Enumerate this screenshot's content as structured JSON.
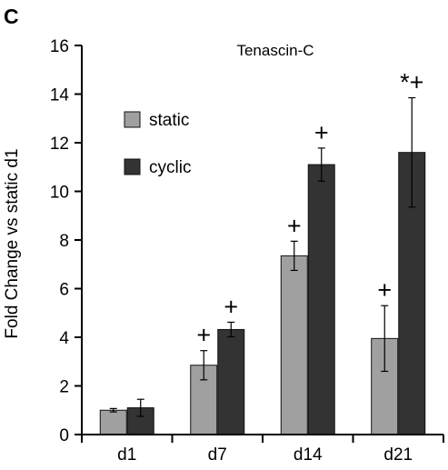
{
  "panel_label": "C",
  "chart_data": {
    "type": "bar",
    "title": "Tenascin-C",
    "xlabel": "",
    "ylabel": "Fold Change vs static d1",
    "ylim": [
      0,
      16
    ],
    "yticks": [
      "0",
      "2",
      "4",
      "6",
      "8",
      "10",
      "12",
      "14",
      "16"
    ],
    "categories": [
      "d1",
      "d7",
      "d14",
      "d21"
    ],
    "grid": false,
    "legend_position": "top-left",
    "series": [
      {
        "name": "static",
        "color": "#a0a0a0",
        "values": [
          1.0,
          2.85,
          7.35,
          3.95
        ],
        "errors": [
          0.07,
          0.6,
          0.6,
          1.35
        ],
        "annotations": [
          "",
          "+",
          "+",
          "+"
        ]
      },
      {
        "name": "cyclic",
        "color": "#333333",
        "values": [
          1.1,
          4.32,
          11.1,
          11.6
        ],
        "errors": [
          0.35,
          0.3,
          0.68,
          2.25
        ],
        "annotations": [
          "",
          "+",
          "+",
          "*+"
        ]
      }
    ]
  }
}
